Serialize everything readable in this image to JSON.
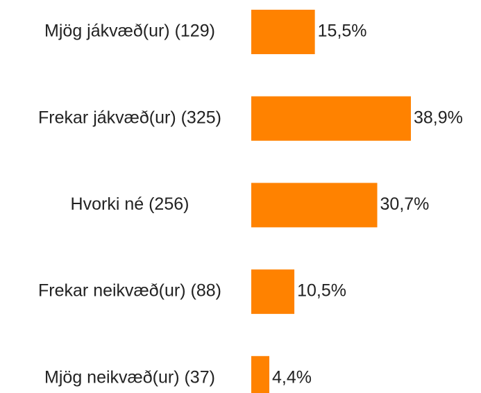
{
  "chart_data": {
    "type": "bar",
    "orientation": "horizontal",
    "categories": [
      "Mjög jákvæð(ur) (129)",
      "Frekar jákvæð(ur) (325)",
      "Hvorki né (256)",
      "Frekar neikvæð(ur) (88)",
      "Mjög neikvæð(ur) (37)"
    ],
    "values": [
      15.5,
      38.9,
      30.7,
      10.5,
      4.4
    ],
    "value_labels": [
      "15,5%",
      "38,9%",
      "30,7%",
      "10,5%",
      "4,4%"
    ],
    "color": "#ff8200"
  }
}
